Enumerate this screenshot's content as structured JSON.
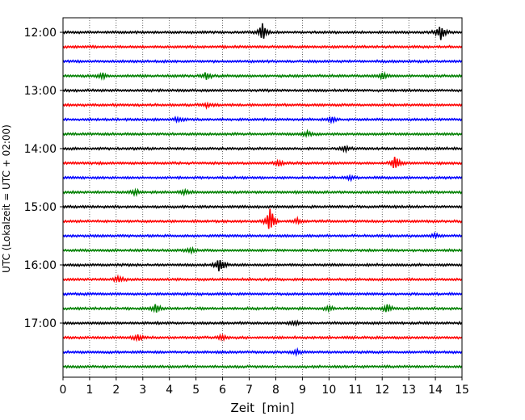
{
  "chart_data": {
    "type": "line",
    "title": "",
    "xlabel": "Zeit  [min]",
    "ylabel": "UTC (Lokalzeit = UTC + 02:00)",
    "xlim": [
      0,
      15
    ],
    "x_ticks": [
      0,
      1,
      2,
      3,
      4,
      5,
      6,
      7,
      8,
      9,
      10,
      11,
      12,
      13,
      14,
      15
    ],
    "y_tick_labels": [
      "12:00",
      "13:00",
      "14:00",
      "15:00",
      "16:00",
      "17:00"
    ],
    "grid": "vertical dotted lines at each minute",
    "trace_minutes": 15,
    "colors": [
      "#000000",
      "#ff0000",
      "#0000ff",
      "#008000"
    ],
    "traces": [
      {
        "start": "12:00",
        "color": "#000000",
        "events": [
          {
            "x": 7.5,
            "amp": 11
          },
          {
            "x": 14.2,
            "amp": 10
          }
        ]
      },
      {
        "start": "12:15",
        "color": "#ff0000",
        "events": []
      },
      {
        "start": "12:30",
        "color": "#0000ff",
        "events": []
      },
      {
        "start": "12:45",
        "color": "#008000",
        "events": [
          {
            "x": 1.5,
            "amp": 4
          },
          {
            "x": 5.4,
            "amp": 5
          },
          {
            "x": 12.0,
            "amp": 4
          }
        ]
      },
      {
        "start": "13:00",
        "color": "#000000",
        "events": []
      },
      {
        "start": "13:15",
        "color": "#ff0000",
        "events": [
          {
            "x": 5.4,
            "amp": 3
          }
        ]
      },
      {
        "start": "13:30",
        "color": "#0000ff",
        "events": [
          {
            "x": 4.3,
            "amp": 3
          },
          {
            "x": 10.1,
            "amp": 4
          }
        ]
      },
      {
        "start": "13:45",
        "color": "#008000",
        "events": [
          {
            "x": 9.2,
            "amp": 3
          }
        ]
      },
      {
        "start": "14:00",
        "color": "#000000",
        "events": [
          {
            "x": 10.6,
            "amp": 3
          }
        ]
      },
      {
        "start": "14:15",
        "color": "#ff0000",
        "events": [
          {
            "x": 8.1,
            "amp": 3
          },
          {
            "x": 12.5,
            "amp": 10
          }
        ]
      },
      {
        "start": "14:30",
        "color": "#0000ff",
        "events": [
          {
            "x": 10.8,
            "amp": 3
          }
        ]
      },
      {
        "start": "14:45",
        "color": "#008000",
        "events": [
          {
            "x": 2.7,
            "amp": 4
          },
          {
            "x": 4.6,
            "amp": 3
          }
        ]
      },
      {
        "start": "15:00",
        "color": "#000000",
        "events": []
      },
      {
        "start": "15:15",
        "color": "#ff0000",
        "events": [
          {
            "x": 7.8,
            "amp": 18
          },
          {
            "x": 8.8,
            "amp": 3
          }
        ]
      },
      {
        "start": "15:30",
        "color": "#0000ff",
        "events": [
          {
            "x": 14.0,
            "amp": 3
          }
        ]
      },
      {
        "start": "15:45",
        "color": "#008000",
        "events": [
          {
            "x": 4.8,
            "amp": 3
          }
        ]
      },
      {
        "start": "16:00",
        "color": "#000000",
        "events": [
          {
            "x": 5.9,
            "amp": 11
          }
        ]
      },
      {
        "start": "16:15",
        "color": "#ff0000",
        "events": [
          {
            "x": 2.1,
            "amp": 4
          }
        ]
      },
      {
        "start": "16:30",
        "color": "#0000ff",
        "events": []
      },
      {
        "start": "16:45",
        "color": "#008000",
        "events": [
          {
            "x": 3.5,
            "amp": 6
          },
          {
            "x": 10.0,
            "amp": 3
          },
          {
            "x": 12.2,
            "amp": 5
          }
        ]
      },
      {
        "start": "17:00",
        "color": "#000000",
        "events": [
          {
            "x": 8.7,
            "amp": 3
          }
        ]
      },
      {
        "start": "17:15",
        "color": "#ff0000",
        "events": [
          {
            "x": 2.8,
            "amp": 5
          },
          {
            "x": 6.0,
            "amp": 4
          }
        ]
      },
      {
        "start": "17:30",
        "color": "#0000ff",
        "events": [
          {
            "x": 8.8,
            "amp": 3
          }
        ]
      },
      {
        "start": "17:45",
        "color": "#008000",
        "events": []
      }
    ]
  }
}
